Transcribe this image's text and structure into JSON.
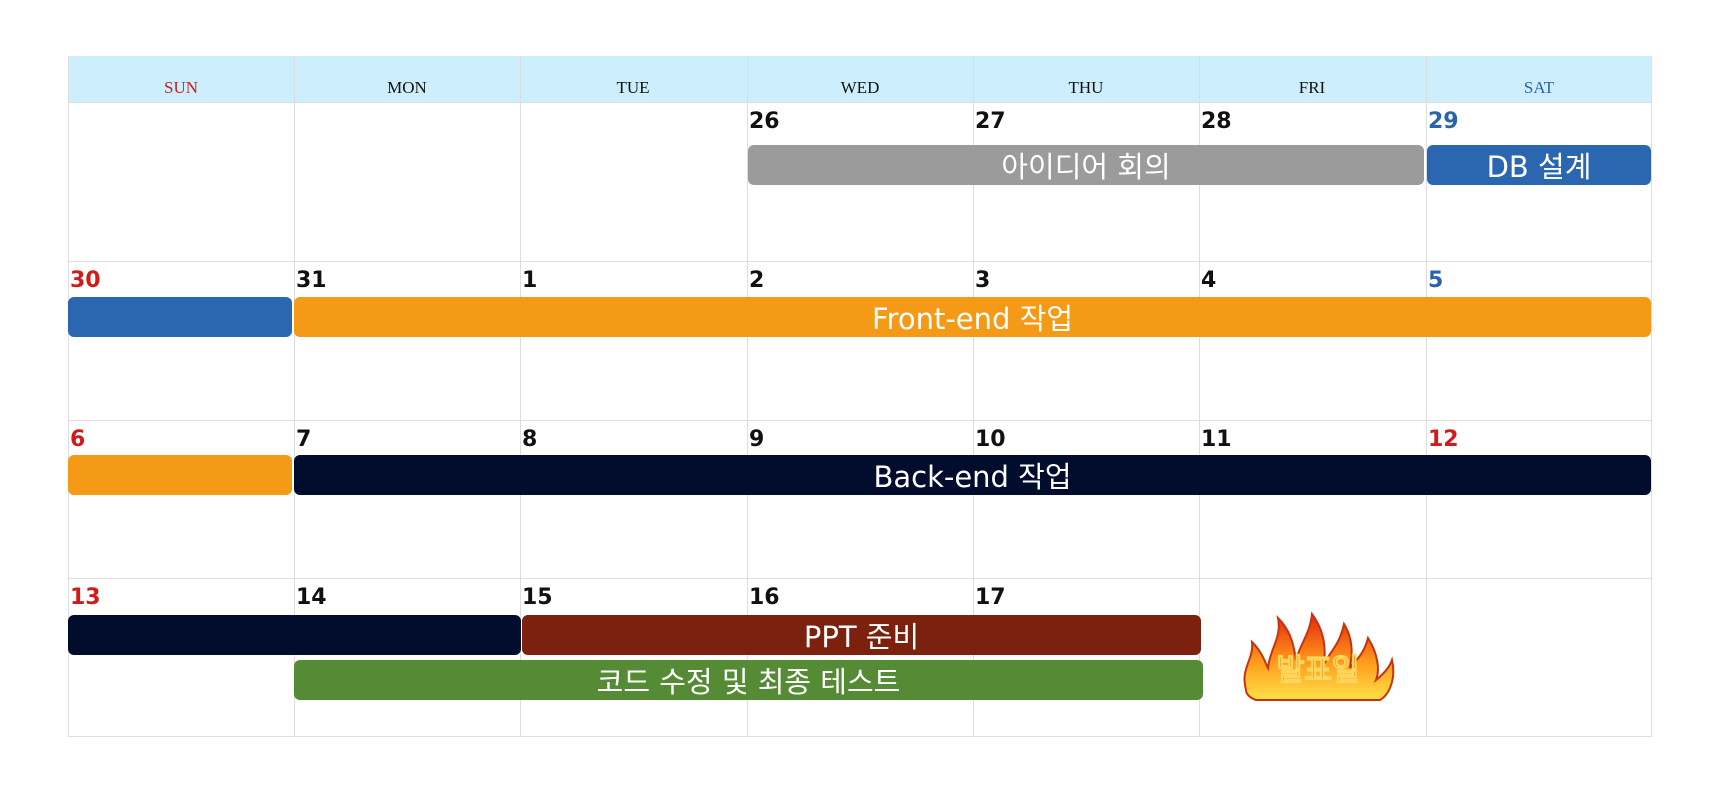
{
  "weekdays": [
    "SUN",
    "MON",
    "TUE",
    "WED",
    "THU",
    "FRI",
    "SAT"
  ],
  "weeks": [
    [
      "",
      "",
      "",
      "26",
      "27",
      "28",
      "29"
    ],
    [
      "30",
      "31",
      "1",
      "2",
      "3",
      "4",
      "5"
    ],
    [
      "6",
      "7",
      "8",
      "9",
      "10",
      "11",
      "12"
    ],
    [
      "13",
      "14",
      "15",
      "16",
      "17",
      "",
      ""
    ]
  ],
  "events": {
    "idea_meeting": "아이디어 회의",
    "db_design": "DB 설계",
    "frontend": "Front-end 작업",
    "backend": "Back-end 작업",
    "ppt": "PPT 준비",
    "code_fix": "코드 수정 및 최종 테스트"
  },
  "presentation_day": "발표일",
  "colors": {
    "header_bg": "#cdeefc",
    "sunday_red": "#d11b1b",
    "saturday_blue": "#2b62ad",
    "idea_gray": "#9b9b9b",
    "db_blue": "#2b66b1",
    "frontend_orange": "#f59a16",
    "backend_navy": "#020d2e",
    "ppt_brown": "#7b210d",
    "code_green": "#568b36"
  }
}
